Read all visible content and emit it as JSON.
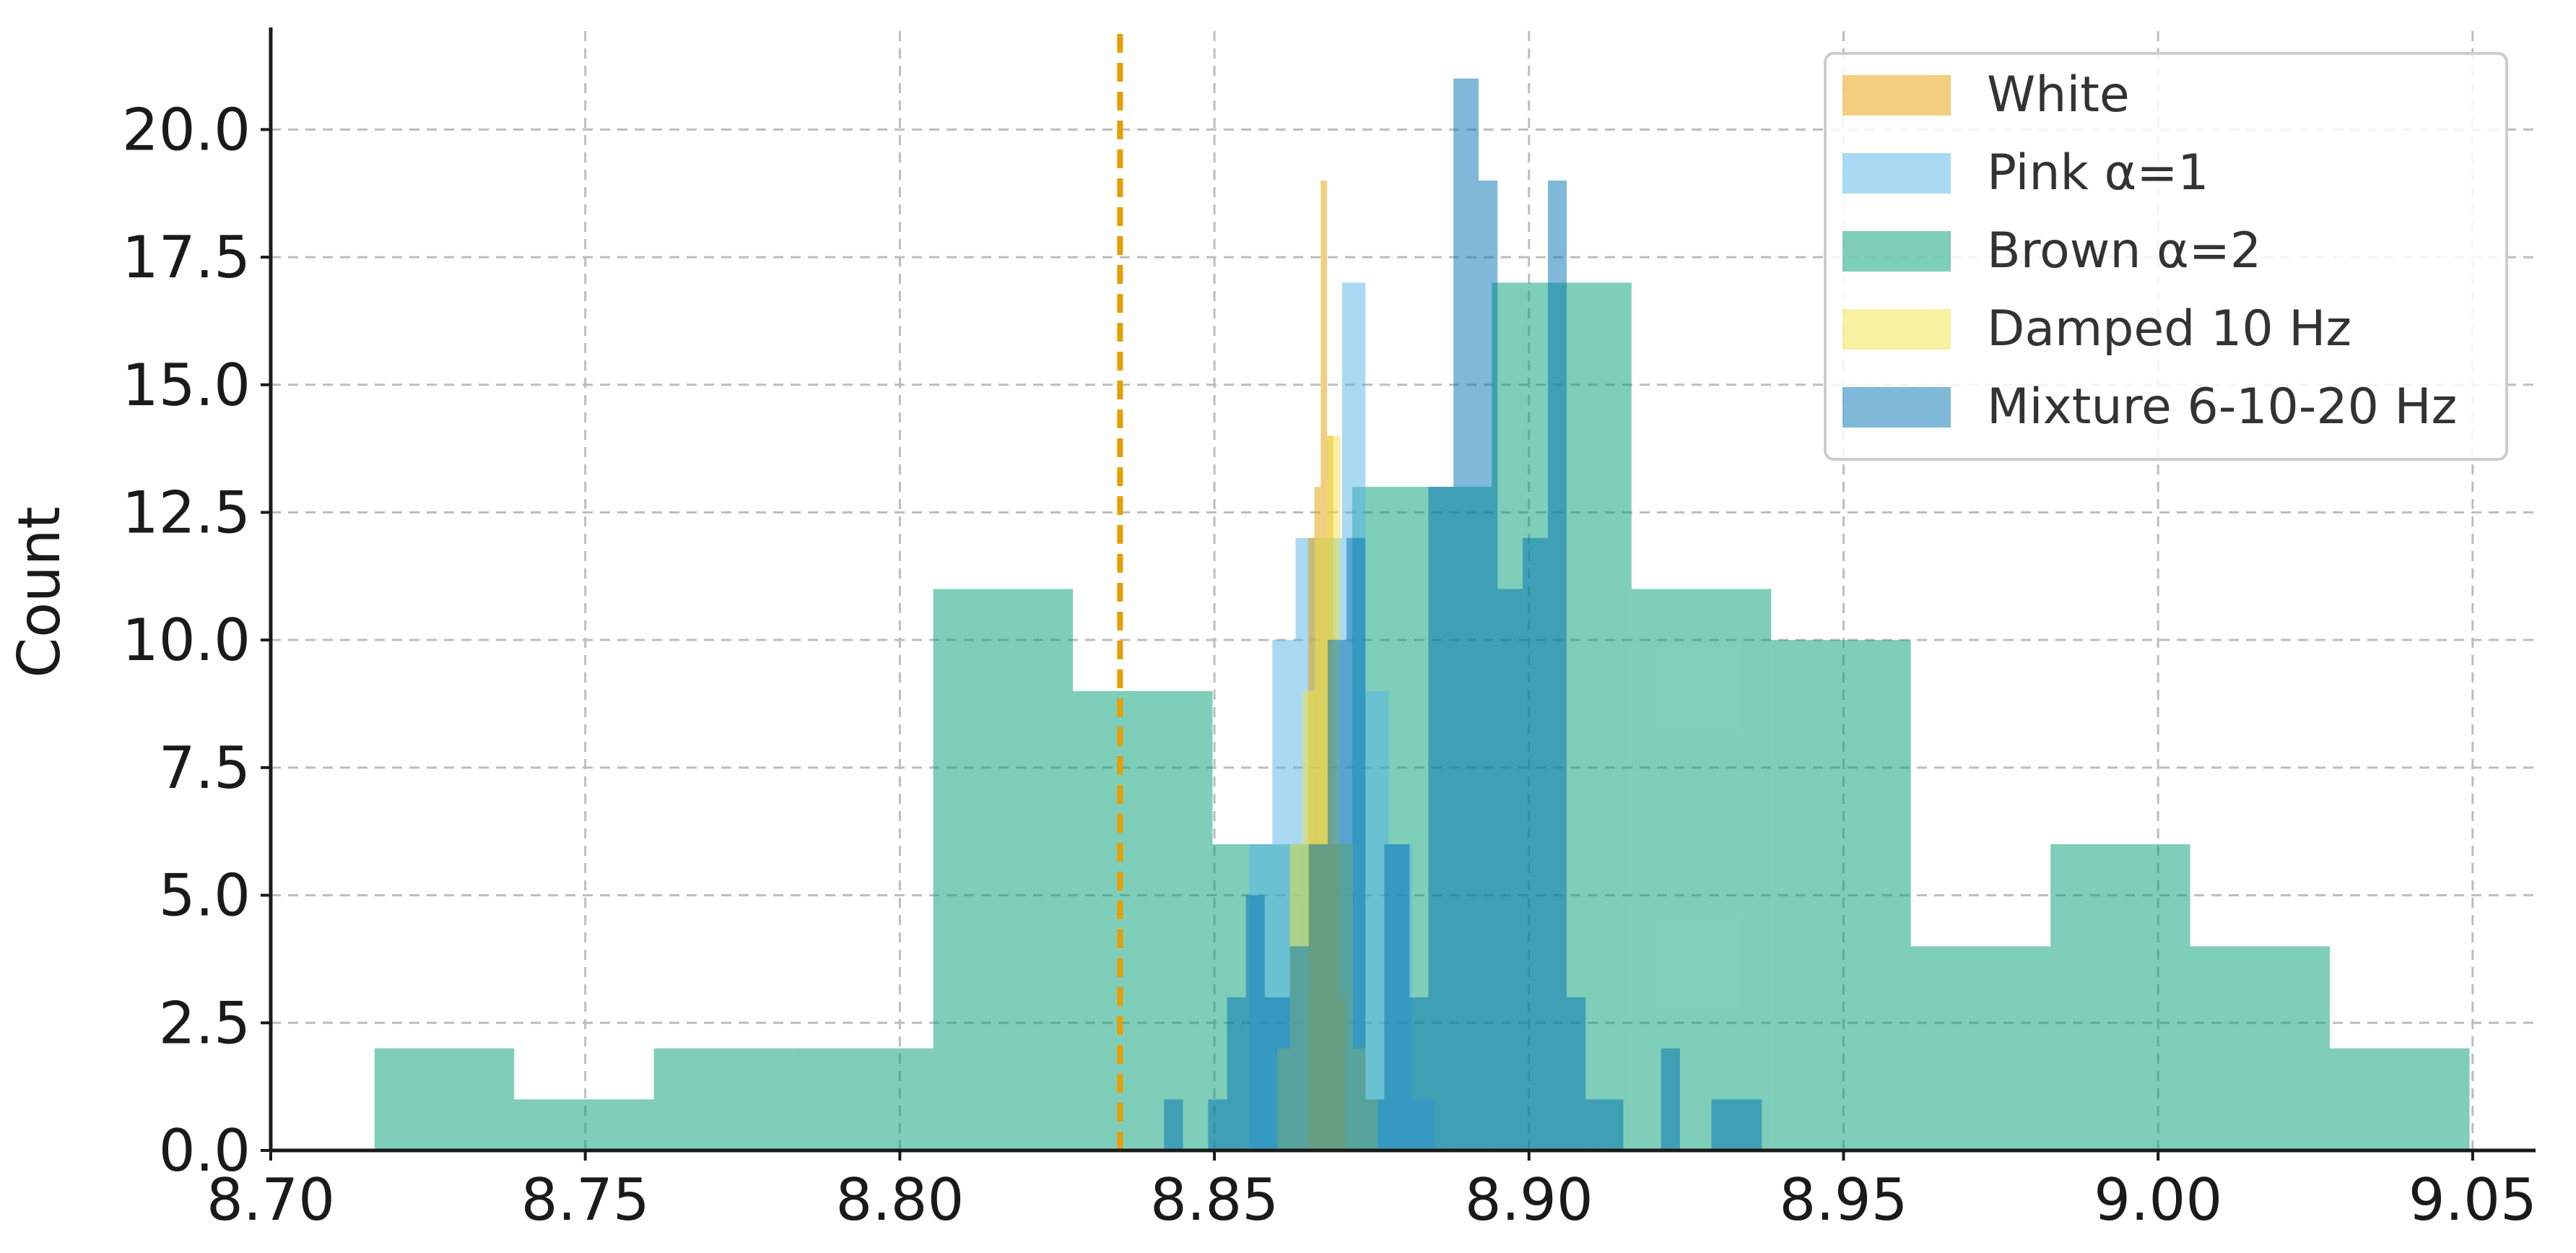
{
  "chart_data": {
    "type": "bar",
    "title": "",
    "xlabel": "",
    "ylabel": "Count",
    "xlim": [
      8.7,
      9.06
    ],
    "ylim": [
      0,
      22
    ],
    "x_ticks": [
      8.7,
      8.75,
      8.8,
      8.85,
      8.9,
      8.95,
      9.0,
      9.05
    ],
    "x_tick_labels": [
      "8.70",
      "8.75",
      "8.80",
      "8.85",
      "8.90",
      "8.95",
      "9.00",
      "9.05"
    ],
    "y_ticks": [
      0,
      2.5,
      5,
      7.5,
      10,
      12.5,
      15,
      17.5,
      20
    ],
    "y_tick_labels": [
      "0.0",
      "2.5",
      "5.0",
      "7.5",
      "10.0",
      "12.5",
      "15.0",
      "17.5",
      "20.0"
    ],
    "grid": true,
    "legend_position": "top-right",
    "reference_line": {
      "x": 8.835,
      "style": "dashed",
      "color": "#E69F00"
    },
    "series": [
      {
        "name": "Brown α=2",
        "color": "#009E73",
        "opacity": 0.5,
        "bins": [
          [
            8.7165,
            8.7387,
            2
          ],
          [
            8.7387,
            8.7609,
            1
          ],
          [
            8.7609,
            8.7831,
            2
          ],
          [
            8.7831,
            8.8053,
            2
          ],
          [
            8.8053,
            8.8275,
            11
          ],
          [
            8.8275,
            8.8497,
            9
          ],
          [
            8.8497,
            8.8719,
            6
          ],
          [
            8.8719,
            8.8941,
            13
          ],
          [
            8.8941,
            8.9163,
            17
          ],
          [
            8.9163,
            8.9385,
            11
          ],
          [
            8.9385,
            8.9607,
            10
          ],
          [
            8.9607,
            8.9829,
            4
          ],
          [
            8.9829,
            9.0051,
            6
          ],
          [
            9.0051,
            9.0273,
            4
          ],
          [
            9.0273,
            9.0495,
            2
          ]
        ]
      },
      {
        "name": "Pink α=1",
        "color": "#56B4E9",
        "opacity": 0.5,
        "bins": [
          [
            8.8555,
            8.8592,
            6
          ],
          [
            8.8592,
            8.8629,
            10
          ],
          [
            8.8629,
            8.8666,
            12
          ],
          [
            8.8666,
            8.8703,
            12
          ],
          [
            8.8703,
            8.874,
            17
          ],
          [
            8.874,
            8.8777,
            9
          ],
          [
            8.8777,
            8.8814,
            6
          ],
          [
            8.8814,
            8.8851,
            1
          ]
        ]
      },
      {
        "name": "White",
        "color": "#E69F00",
        "opacity": 0.5,
        "bins": [
          [
            8.8649,
            8.8659,
            12
          ],
          [
            8.8659,
            8.8669,
            13
          ],
          [
            8.8669,
            8.8679,
            19
          ],
          [
            8.8679,
            8.8689,
            14
          ],
          [
            8.8689,
            8.8699,
            6
          ],
          [
            8.8699,
            8.8709,
            3
          ]
        ]
      },
      {
        "name": "Damped 10 Hz",
        "color": "#F0E442",
        "opacity": 0.5,
        "bins": [
          [
            8.86,
            8.862,
            2
          ],
          [
            8.862,
            8.864,
            6
          ],
          [
            8.864,
            8.866,
            9
          ],
          [
            8.866,
            8.868,
            12
          ],
          [
            8.868,
            8.87,
            14
          ],
          [
            8.87,
            8.872,
            6
          ],
          [
            8.872,
            8.874,
            2
          ],
          [
            8.874,
            8.876,
            1
          ]
        ]
      },
      {
        "name": "Mixture 6-10-20 Hz",
        "color": "#0072B2",
        "opacity": 0.5,
        "bins": [
          [
            8.842,
            8.845,
            1
          ],
          [
            8.849,
            8.852,
            1
          ],
          [
            8.852,
            8.855,
            3
          ],
          [
            8.855,
            8.858,
            5
          ],
          [
            8.858,
            8.862,
            3
          ],
          [
            8.862,
            8.865,
            4
          ],
          [
            8.865,
            8.868,
            6
          ],
          [
            8.868,
            8.871,
            10
          ],
          [
            8.871,
            8.874,
            12
          ],
          [
            8.874,
            8.877,
            1
          ],
          [
            8.877,
            8.881,
            6
          ],
          [
            8.881,
            8.884,
            3
          ],
          [
            8.884,
            8.888,
            13
          ],
          [
            8.888,
            8.892,
            21
          ],
          [
            8.892,
            8.895,
            19
          ],
          [
            8.895,
            8.899,
            11
          ],
          [
            8.899,
            8.903,
            12
          ],
          [
            8.903,
            8.906,
            19
          ],
          [
            8.906,
            8.909,
            3
          ],
          [
            8.909,
            8.912,
            1
          ],
          [
            8.912,
            8.915,
            1
          ],
          [
            8.921,
            8.924,
            2
          ],
          [
            8.929,
            8.937,
            1
          ]
        ]
      }
    ],
    "legend_order": [
      "White",
      "Pink α=1",
      "Brown α=2",
      "Damped 10 Hz",
      "Mixture 6-10-20 Hz"
    ]
  }
}
